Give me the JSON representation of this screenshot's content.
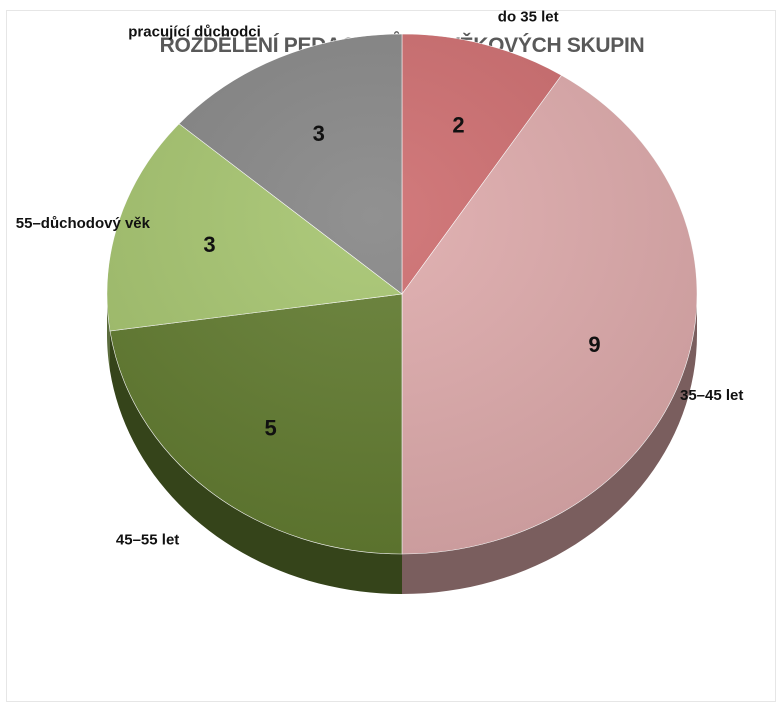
{
  "chart_data": {
    "type": "pie",
    "style": "3d",
    "title": "ROZDĚLENÍ PEDAGOGŮ DO VĚKOVÝCH SKUPIN",
    "slices": [
      {
        "label": "do 35 let",
        "value": 2,
        "color": "#cd6c6e"
      },
      {
        "label": "35–45 let",
        "value": 9,
        "color": "#deaaab"
      },
      {
        "label": "45–55 let",
        "value": 5,
        "color": "#617b2f"
      },
      {
        "label": "55–důchodový věk",
        "value": 3,
        "color": "#a5c46e"
      },
      {
        "label": "pracující důchodci",
        "value": 3,
        "color": "#858585"
      }
    ]
  }
}
